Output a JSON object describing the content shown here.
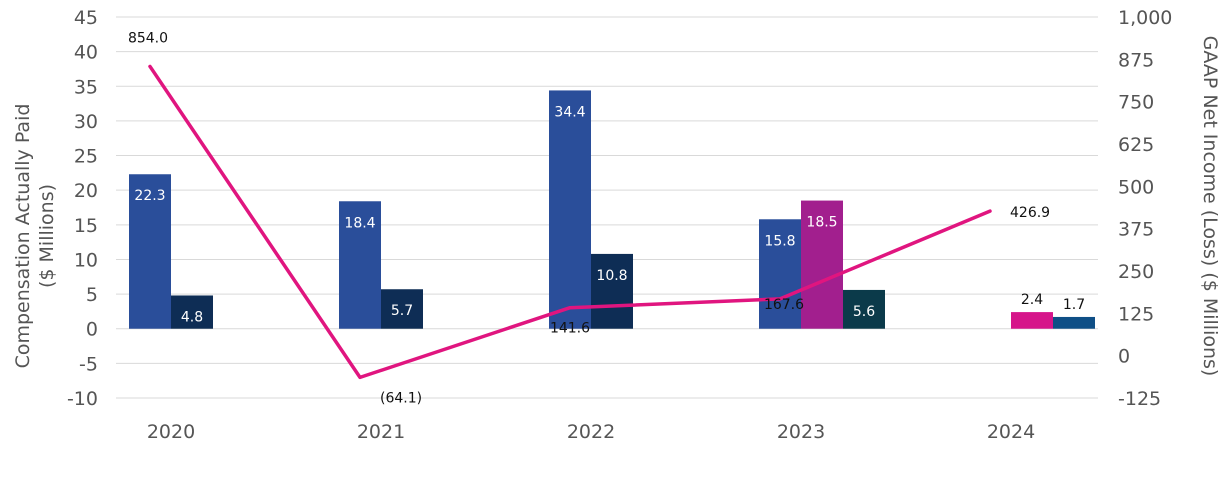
{
  "chart_data": {
    "type": "bar+line",
    "categories": [
      "2020",
      "2021",
      "2022",
      "2023",
      "2024"
    ],
    "left_axis": {
      "title_line1": "Compensation Actually Paid",
      "title_line2": "($ Millions)",
      "ylim": [
        -10,
        45
      ],
      "ticks": [
        45,
        40,
        35,
        30,
        25,
        20,
        15,
        10,
        5,
        0,
        -5,
        -10
      ],
      "tick_labels": [
        "45",
        "40",
        "35",
        "30",
        "25",
        "20",
        "15",
        "10",
        "5",
        "0",
        "-5",
        "-10"
      ]
    },
    "right_axis": {
      "title": "GAAP Net Income (Loss) ($ Millions)",
      "ylim": [
        -125,
        1000
      ],
      "ticks": [
        1000,
        875,
        750,
        625,
        500,
        375,
        250,
        125,
        0,
        -125
      ],
      "tick_labels": [
        "1,000",
        "875",
        "750",
        "625",
        "500",
        "375",
        "250",
        "125",
        "0",
        "-125"
      ]
    },
    "bars": [
      {
        "category": "2020",
        "slot": 0,
        "value": 22.3,
        "label": "22.3",
        "color": "#2a4e9a",
        "label_color": "#ffffff"
      },
      {
        "category": "2020",
        "slot": 1,
        "value": 4.8,
        "label": "4.8",
        "color": "#0e2d55",
        "label_color": "#ffffff"
      },
      {
        "category": "2021",
        "slot": 0,
        "value": 18.4,
        "label": "18.4",
        "color": "#2a4e9a",
        "label_color": "#ffffff"
      },
      {
        "category": "2021",
        "slot": 1,
        "value": 5.7,
        "label": "5.7",
        "color": "#0e2d55",
        "label_color": "#ffffff"
      },
      {
        "category": "2022",
        "slot": 0,
        "value": 34.4,
        "label": "34.4",
        "color": "#2a4e9a",
        "label_color": "#ffffff"
      },
      {
        "category": "2022",
        "slot": 1,
        "value": 10.8,
        "label": "10.8",
        "color": "#0e2d55",
        "label_color": "#ffffff"
      },
      {
        "category": "2023",
        "slot": 0,
        "value": 15.8,
        "label": "15.8",
        "color": "#2a4e9a",
        "label_color": "#ffffff"
      },
      {
        "category": "2023",
        "slot": 1,
        "value": 18.5,
        "label": "18.5",
        "color": "#a21f8e",
        "label_color": "#ffffff"
      },
      {
        "category": "2023",
        "slot": 2,
        "value": 5.6,
        "label": "5.6",
        "color": "#0b3a4a",
        "label_color": "#ffffff"
      },
      {
        "category": "2024",
        "slot": 1,
        "value": 2.4,
        "label": "2.4",
        "color": "#d6158a",
        "label_color": "#111111"
      },
      {
        "category": "2024",
        "slot": 2,
        "value": 1.7,
        "label": "1.7",
        "color": "#0f4f86",
        "label_color": "#111111"
      }
    ],
    "line": {
      "name": "GAAP Net Income (Loss)",
      "axis": "right",
      "color": "#e0157f",
      "values": [
        854.0,
        -64.1,
        141.6,
        167.6,
        426.9
      ],
      "labels": [
        "854.0",
        "(64.1)",
        "141.6",
        "167.6",
        "426.9"
      ]
    },
    "gridlines": true
  }
}
